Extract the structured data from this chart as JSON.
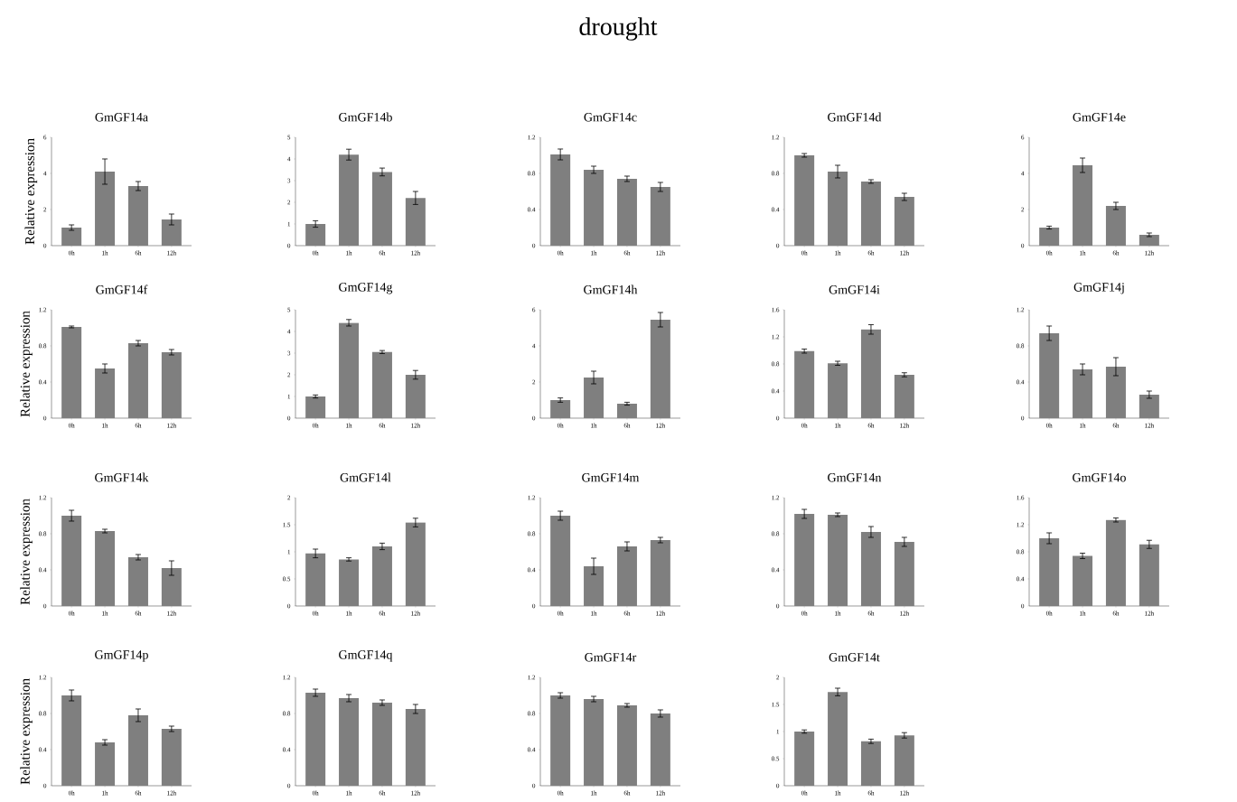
{
  "chart_data": [
    {
      "type": "bar",
      "title": "GmGF14a",
      "ylabel": "Relative expression",
      "annotations": [
        "drought"
      ],
      "categories": [
        "0h",
        "1h",
        "6h",
        "12h"
      ],
      "values": [
        1.0,
        4.1,
        3.3,
        1.45
      ],
      "errors": [
        0.15,
        0.7,
        0.25,
        0.3
      ],
      "color": "#7f7f7f",
      "ylim": [
        0,
        6
      ],
      "yticks": [
        0,
        2,
        4,
        6
      ]
    },
    {
      "type": "bar",
      "title": "GmGF14b",
      "categories": [
        "0h",
        "1h",
        "6h",
        "12h"
      ],
      "values": [
        1.0,
        4.2,
        3.4,
        2.2
      ],
      "errors": [
        0.15,
        0.25,
        0.18,
        0.3
      ],
      "color": "#7f7f7f",
      "ylim": [
        0,
        5
      ],
      "yticks": [
        0,
        1,
        2,
        3,
        4,
        5
      ]
    },
    {
      "type": "bar",
      "title": "GmGF14c",
      "categories": [
        "0h",
        "1h",
        "6h",
        "12h"
      ],
      "values": [
        1.01,
        0.84,
        0.74,
        0.65
      ],
      "errors": [
        0.06,
        0.04,
        0.03,
        0.05
      ],
      "color": "#7f7f7f",
      "ylim": [
        0,
        1.2
      ],
      "yticks": [
        0,
        0.4,
        0.8,
        1.2
      ]
    },
    {
      "type": "bar",
      "title": "GmGF14d",
      "categories": [
        "0h",
        "1h",
        "6h",
        "12h"
      ],
      "values": [
        1.0,
        0.82,
        0.71,
        0.54
      ],
      "errors": [
        0.02,
        0.07,
        0.02,
        0.04
      ],
      "color": "#7f7f7f",
      "ylim": [
        0,
        1.2
      ],
      "yticks": [
        0,
        0.4,
        0.8,
        1.2
      ]
    },
    {
      "type": "bar",
      "title": "GmGF14e",
      "categories": [
        "0h",
        "1h",
        "6h",
        "12h"
      ],
      "values": [
        1.0,
        4.45,
        2.2,
        0.6
      ],
      "errors": [
        0.08,
        0.4,
        0.2,
        0.1
      ],
      "color": "#7f7f7f",
      "ylim": [
        0,
        6
      ],
      "yticks": [
        0,
        2,
        4,
        6
      ]
    },
    {
      "type": "bar",
      "title": "GmGF14f",
      "ylabel": "Relative expression",
      "categories": [
        "0h",
        "1h",
        "6h",
        "12h"
      ],
      "values": [
        1.01,
        0.55,
        0.83,
        0.73
      ],
      "errors": [
        0.01,
        0.05,
        0.03,
        0.03
      ],
      "color": "#7f7f7f",
      "ylim": [
        0,
        1.2
      ],
      "yticks": [
        0,
        0.4,
        0.8,
        1.2
      ]
    },
    {
      "type": "bar",
      "title": "GmGF14g",
      "categories": [
        "0h",
        "1h",
        "6h",
        "12h"
      ],
      "values": [
        1.0,
        4.4,
        3.05,
        2.0
      ],
      "errors": [
        0.07,
        0.15,
        0.07,
        0.2
      ],
      "color": "#7f7f7f",
      "ylim": [
        0,
        5
      ],
      "yticks": [
        0,
        1,
        2,
        3,
        4,
        5
      ]
    },
    {
      "type": "bar",
      "title": "GmGF14h",
      "categories": [
        "0h",
        "1h",
        "6h",
        "12h"
      ],
      "values": [
        1.0,
        2.25,
        0.8,
        5.45
      ],
      "errors": [
        0.12,
        0.35,
        0.08,
        0.4
      ],
      "color": "#7f7f7f",
      "ylim": [
        0,
        6
      ],
      "yticks": [
        0,
        2,
        4,
        6
      ]
    },
    {
      "type": "bar",
      "title": "GmGF14i",
      "categories": [
        "0h",
        "1h",
        "6h",
        "12h"
      ],
      "values": [
        0.99,
        0.81,
        1.31,
        0.64
      ],
      "errors": [
        0.03,
        0.03,
        0.07,
        0.03
      ],
      "color": "#7f7f7f",
      "ylim": [
        0,
        1.6
      ],
      "yticks": [
        0,
        0.4,
        0.8,
        1.2,
        1.6
      ]
    },
    {
      "type": "bar",
      "title": "GmGF14j",
      "categories": [
        "0h",
        "1h",
        "6h",
        "12h"
      ],
      "values": [
        0.94,
        0.54,
        0.57,
        0.26
      ],
      "errors": [
        0.08,
        0.06,
        0.1,
        0.04
      ],
      "color": "#7f7f7f",
      "ylim": [
        0,
        1.2
      ],
      "yticks": [
        0,
        0.4,
        0.8,
        1.2
      ]
    },
    {
      "type": "bar",
      "title": "GmGF14k",
      "ylabel": "Relative expression",
      "categories": [
        "0h",
        "1h",
        "6h",
        "12h"
      ],
      "values": [
        1.0,
        0.83,
        0.54,
        0.42
      ],
      "errors": [
        0.06,
        0.02,
        0.03,
        0.08
      ],
      "color": "#7f7f7f",
      "ylim": [
        0,
        1.2
      ],
      "yticks": [
        0,
        0.4,
        0.8,
        1.2
      ]
    },
    {
      "type": "bar",
      "title": "GmGF14l",
      "categories": [
        "0h",
        "1h",
        "6h",
        "12h"
      ],
      "values": [
        0.97,
        0.86,
        1.1,
        1.54
      ],
      "errors": [
        0.08,
        0.03,
        0.06,
        0.08
      ],
      "color": "#7f7f7f",
      "ylim": [
        0,
        2
      ],
      "yticks": [
        0,
        0.5,
        1,
        1.5,
        2
      ]
    },
    {
      "type": "bar",
      "title": "GmGF14m",
      "categories": [
        "0h",
        "1h",
        "6h",
        "12h"
      ],
      "values": [
        1.0,
        0.44,
        0.66,
        0.73
      ],
      "errors": [
        0.05,
        0.09,
        0.05,
        0.03
      ],
      "color": "#7f7f7f",
      "ylim": [
        0,
        1.2
      ],
      "yticks": [
        0,
        0.4,
        0.8,
        1.2
      ]
    },
    {
      "type": "bar",
      "title": "GmGF14n",
      "categories": [
        "0h",
        "1h",
        "6h",
        "12h"
      ],
      "values": [
        1.02,
        1.01,
        0.82,
        0.71
      ],
      "errors": [
        0.05,
        0.02,
        0.06,
        0.05
      ],
      "color": "#7f7f7f",
      "ylim": [
        0,
        1.2
      ],
      "yticks": [
        0,
        0.4,
        0.8,
        1.2
      ]
    },
    {
      "type": "bar",
      "title": "GmGF14o",
      "categories": [
        "0h",
        "1h",
        "6h",
        "12h"
      ],
      "values": [
        1.0,
        0.74,
        1.27,
        0.91
      ],
      "errors": [
        0.08,
        0.04,
        0.03,
        0.06
      ],
      "color": "#7f7f7f",
      "ylim": [
        0,
        1.6
      ],
      "yticks": [
        0,
        0.4,
        0.8,
        1.2,
        1.6
      ]
    },
    {
      "type": "bar",
      "title": "GmGF14p",
      "ylabel": "Relative expression",
      "categories": [
        "0h",
        "1h",
        "6h",
        "12h"
      ],
      "values": [
        1.0,
        0.48,
        0.78,
        0.63
      ],
      "errors": [
        0.06,
        0.03,
        0.07,
        0.03
      ],
      "color": "#7f7f7f",
      "ylim": [
        0,
        1.2
      ],
      "yticks": [
        0,
        0.4,
        0.8,
        1.2
      ]
    },
    {
      "type": "bar",
      "title": "GmGF14q",
      "categories": [
        "0h",
        "1h",
        "6h",
        "12h"
      ],
      "values": [
        1.03,
        0.97,
        0.92,
        0.85
      ],
      "errors": [
        0.04,
        0.04,
        0.03,
        0.05
      ],
      "color": "#7f7f7f",
      "ylim": [
        0,
        1.2
      ],
      "yticks": [
        0,
        0.4,
        0.8,
        1.2
      ]
    },
    {
      "type": "bar",
      "title": "GmGF14r",
      "categories": [
        "0h",
        "1h",
        "6h",
        "12h"
      ],
      "values": [
        1.0,
        0.96,
        0.89,
        0.8
      ],
      "errors": [
        0.03,
        0.03,
        0.02,
        0.04
      ],
      "color": "#7f7f7f",
      "ylim": [
        0,
        1.2
      ],
      "yticks": [
        0,
        0.4,
        0.8,
        1.2
      ]
    },
    {
      "type": "bar",
      "title": "GmGF14t",
      "categories": [
        "0h",
        "1h",
        "6h",
        "12h"
      ],
      "values": [
        1.0,
        1.73,
        0.82,
        0.93
      ],
      "errors": [
        0.03,
        0.07,
        0.04,
        0.05
      ],
      "color": "#7f7f7f",
      "ylim": [
        0,
        2
      ],
      "yticks": [
        0,
        0.5,
        1,
        1.5,
        2
      ]
    }
  ]
}
